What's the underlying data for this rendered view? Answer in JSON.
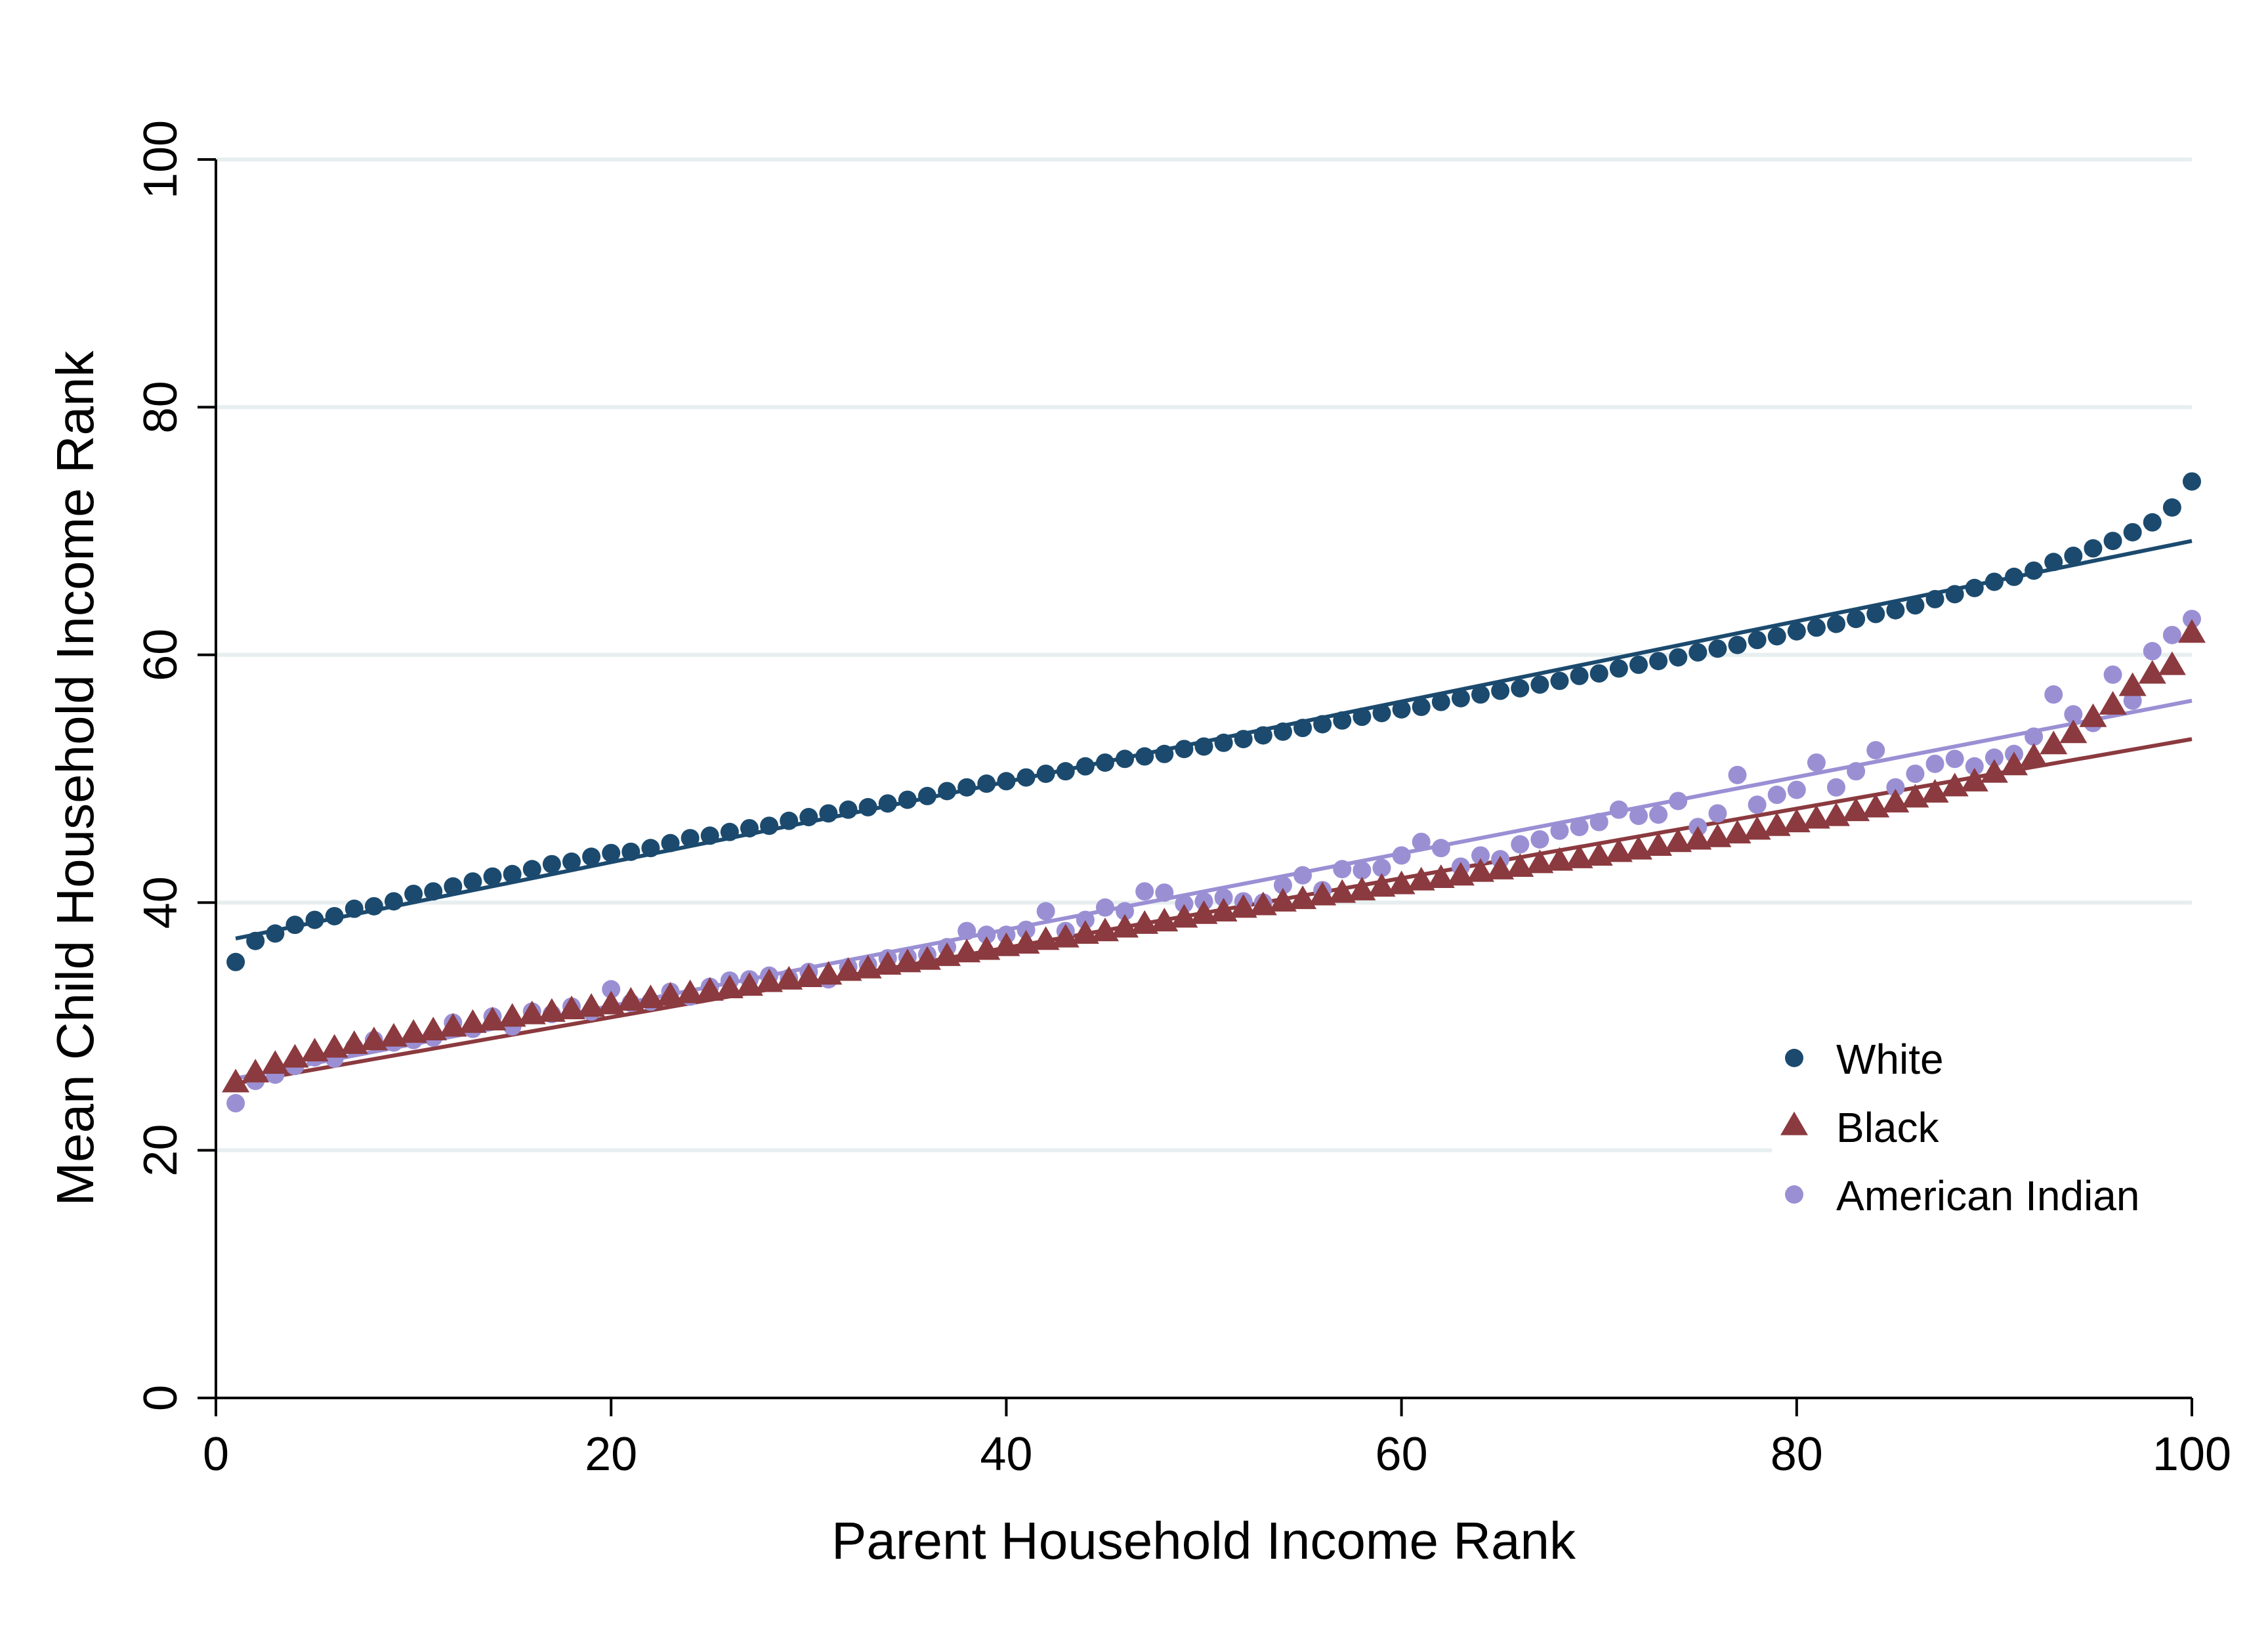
{
  "chart_data": {
    "type": "scatter",
    "title": "",
    "xlabel": "Parent Household Income Rank",
    "ylabel": "Mean Child Household Income Rank",
    "xlim": [
      0,
      100
    ],
    "ylim": [
      0,
      100
    ],
    "xticks": [
      "0",
      "20",
      "40",
      "60",
      "80",
      "100"
    ],
    "yticks": [
      "0",
      "20",
      "40",
      "60",
      "80",
      "100"
    ],
    "grid": "horizontal",
    "legend_position": "lower-right",
    "series": [
      {
        "name": "White",
        "marker": "circle",
        "color": "#1b4a6e",
        "x": [
          1,
          2,
          3,
          4,
          5,
          6,
          7,
          8,
          9,
          10,
          11,
          12,
          13,
          14,
          15,
          16,
          17,
          18,
          19,
          20,
          21,
          22,
          23,
          24,
          25,
          26,
          27,
          28,
          29,
          30,
          31,
          32,
          33,
          34,
          35,
          36,
          37,
          38,
          39,
          40,
          41,
          42,
          43,
          44,
          45,
          46,
          47,
          48,
          49,
          50,
          51,
          52,
          53,
          54,
          55,
          56,
          57,
          58,
          59,
          60,
          61,
          62,
          63,
          64,
          65,
          66,
          67,
          68,
          69,
          70,
          71,
          72,
          73,
          74,
          75,
          76,
          77,
          78,
          79,
          80,
          81,
          82,
          83,
          84,
          85,
          86,
          87,
          88,
          89,
          90,
          91,
          92,
          93,
          94,
          95,
          96,
          97,
          98,
          99,
          100
        ],
        "y": [
          35.2,
          36.9,
          37.5,
          38.2,
          38.6,
          38.9,
          39.5,
          39.7,
          40.1,
          40.7,
          40.9,
          41.3,
          41.7,
          42.1,
          42.3,
          42.7,
          43.1,
          43.3,
          43.7,
          44.0,
          44.1,
          44.4,
          44.8,
          45.2,
          45.4,
          45.7,
          46.0,
          46.2,
          46.6,
          46.9,
          47.2,
          47.5,
          47.7,
          48.0,
          48.3,
          48.6,
          49.0,
          49.3,
          49.6,
          49.8,
          50.1,
          50.4,
          50.6,
          51.0,
          51.3,
          51.6,
          51.8,
          52.0,
          52.4,
          52.6,
          52.9,
          53.2,
          53.5,
          53.8,
          54.1,
          54.4,
          54.7,
          55.0,
          55.3,
          55.6,
          55.8,
          56.2,
          56.5,
          56.8,
          57.1,
          57.3,
          57.6,
          57.9,
          58.3,
          58.5,
          58.9,
          59.2,
          59.5,
          59.8,
          60.2,
          60.5,
          60.8,
          61.2,
          61.5,
          61.9,
          62.2,
          62.5,
          62.9,
          63.3,
          63.6,
          64.0,
          64.5,
          64.9,
          65.4,
          65.9,
          66.3,
          66.8,
          67.5,
          68.0,
          68.6,
          69.2,
          69.9,
          70.7,
          71.9,
          74.0
        ]
      },
      {
        "name": "Black",
        "marker": "triangle",
        "color": "#8b3a3f",
        "x": [
          1,
          2,
          3,
          4,
          5,
          6,
          7,
          8,
          9,
          10,
          11,
          12,
          13,
          14,
          15,
          16,
          17,
          18,
          19,
          20,
          21,
          22,
          23,
          24,
          25,
          26,
          27,
          28,
          29,
          30,
          31,
          32,
          33,
          34,
          35,
          36,
          37,
          38,
          39,
          40,
          41,
          42,
          43,
          44,
          45,
          46,
          47,
          48,
          49,
          50,
          51,
          52,
          53,
          54,
          55,
          56,
          57,
          58,
          59,
          60,
          61,
          62,
          63,
          64,
          65,
          66,
          67,
          68,
          69,
          70,
          71,
          72,
          73,
          74,
          75,
          76,
          77,
          78,
          79,
          80,
          81,
          82,
          83,
          84,
          85,
          86,
          87,
          88,
          89,
          90,
          91,
          92,
          93,
          94,
          95,
          96,
          97,
          98,
          99,
          100
        ],
        "y": [
          25.4,
          26.2,
          26.9,
          27.4,
          27.9,
          28.2,
          28.5,
          28.8,
          29.1,
          29.4,
          29.6,
          29.9,
          30.2,
          30.4,
          30.7,
          30.9,
          31.1,
          31.3,
          31.5,
          31.7,
          32.0,
          32.2,
          32.4,
          32.6,
          32.8,
          33.0,
          33.2,
          33.5,
          33.7,
          33.9,
          34.1,
          34.4,
          34.6,
          34.9,
          35.1,
          35.3,
          35.6,
          35.9,
          36.1,
          36.4,
          36.6,
          36.9,
          37.1,
          37.4,
          37.6,
          37.9,
          38.2,
          38.4,
          38.7,
          39.0,
          39.2,
          39.5,
          39.7,
          40.0,
          40.2,
          40.5,
          40.7,
          40.9,
          41.2,
          41.4,
          41.7,
          41.9,
          42.1,
          42.4,
          42.6,
          42.8,
          43.1,
          43.3,
          43.5,
          43.7,
          44.0,
          44.2,
          44.5,
          44.8,
          45.0,
          45.2,
          45.5,
          45.8,
          46.1,
          46.4,
          46.7,
          46.9,
          47.3,
          47.6,
          48.0,
          48.4,
          48.8,
          49.3,
          49.7,
          50.4,
          51.0,
          51.7,
          52.7,
          53.6,
          54.9,
          55.9,
          57.4,
          58.4,
          59.1,
          61.7
        ]
      },
      {
        "name": "American Indian",
        "marker": "circle",
        "color": "#9b8fd4",
        "x": [
          1,
          2,
          3,
          4,
          5,
          6,
          7,
          8,
          9,
          10,
          11,
          12,
          13,
          14,
          15,
          16,
          17,
          18,
          19,
          20,
          21,
          22,
          23,
          24,
          25,
          26,
          27,
          28,
          29,
          30,
          31,
          32,
          33,
          34,
          35,
          36,
          37,
          38,
          39,
          40,
          41,
          42,
          43,
          44,
          45,
          46,
          47,
          48,
          49,
          50,
          51,
          52,
          53,
          54,
          55,
          56,
          57,
          58,
          59,
          60,
          61,
          62,
          63,
          64,
          65,
          66,
          67,
          68,
          69,
          70,
          71,
          72,
          73,
          74,
          75,
          76,
          77,
          78,
          79,
          80,
          81,
          82,
          83,
          84,
          85,
          86,
          87,
          88,
          89,
          90,
          91,
          92,
          93,
          94,
          95,
          96,
          97,
          98,
          99,
          100
        ],
        "y": [
          23.8,
          25.6,
          26.1,
          26.8,
          27.5,
          27.4,
          28.3,
          28.9,
          28.7,
          28.9,
          29.1,
          30.3,
          29.8,
          30.8,
          30.0,
          31.2,
          31.0,
          31.6,
          31.2,
          33.0,
          31.9,
          32.0,
          32.8,
          32.4,
          33.2,
          33.7,
          33.8,
          34.1,
          33.9,
          34.4,
          33.8,
          34.8,
          35.0,
          35.5,
          35.6,
          35.8,
          36.4,
          37.7,
          37.4,
          37.4,
          37.8,
          39.3,
          37.7,
          38.6,
          39.6,
          39.3,
          40.9,
          40.8,
          39.9,
          40.1,
          40.4,
          40.1,
          40.0,
          41.4,
          42.2,
          41.0,
          42.7,
          42.6,
          42.8,
          43.8,
          44.9,
          44.4,
          42.9,
          43.8,
          43.5,
          44.7,
          45.1,
          45.8,
          46.1,
          46.5,
          47.5,
          47.0,
          47.1,
          48.2,
          46.1,
          47.2,
          50.3,
          47.9,
          48.7,
          49.1,
          51.3,
          49.3,
          50.6,
          52.3,
          49.3,
          50.4,
          51.2,
          51.6,
          51.0,
          51.7,
          52.0,
          53.4,
          56.8,
          55.2,
          54.5,
          58.4,
          56.3,
          60.3,
          61.6,
          62.9
        ]
      }
    ],
    "fit_lines": [
      {
        "name": "White",
        "color": "#1b4a6e",
        "x": [
          1,
          100
        ],
        "y": [
          37.1,
          69.2
        ]
      },
      {
        "name": "Black",
        "color": "#8b3a3f",
        "x": [
          1,
          100
        ],
        "y": [
          25.4,
          53.2
        ]
      },
      {
        "name": "American Indian",
        "color": "#9b8fd4",
        "x": [
          1,
          100
        ],
        "y": [
          25.8,
          56.3
        ]
      }
    ]
  }
}
